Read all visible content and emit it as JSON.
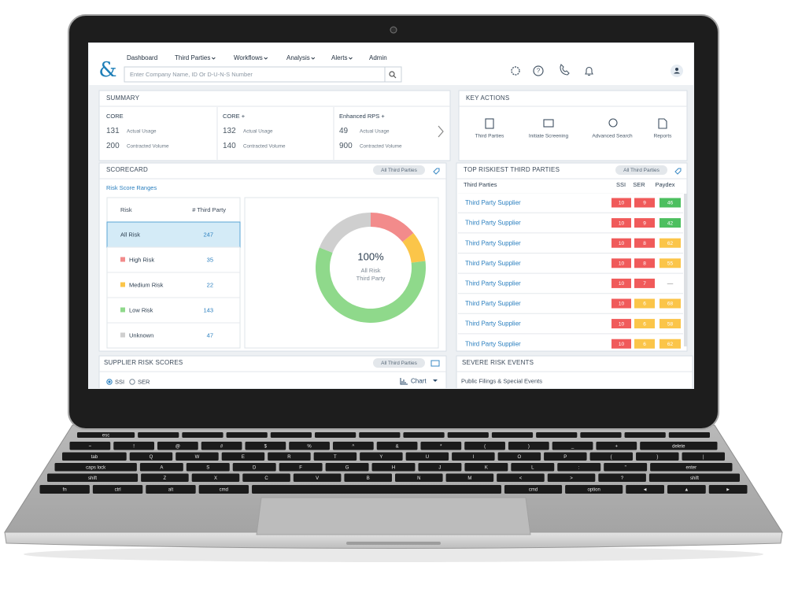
{
  "header": {
    "nav": [
      "Dashboard",
      "Third Parties",
      "Workflows",
      "Analysis",
      "Alerts",
      "Admin"
    ],
    "search_placeholder": "Enter Company Name, ID Or D-U-N-S Number"
  },
  "summary": {
    "title": "SUMMARY",
    "actual_label": "Actual Usage",
    "contracted_label": "Contracted Volume",
    "plans": [
      {
        "name": "CORE",
        "actual": 131,
        "contracted": 200
      },
      {
        "name": "CORE +",
        "actual": 132,
        "contracted": 140
      },
      {
        "name": "Enhanced RPS +",
        "actual": 49,
        "contracted": 900
      }
    ]
  },
  "key_actions": {
    "title": "KEY ACTIONS",
    "items": [
      "Third Parties",
      "Initiate Screening",
      "Advanced Search",
      "Reports"
    ]
  },
  "scorecard": {
    "title": "SCORECARD",
    "filter": "All Third Parties",
    "subtitle": "Risk Score Ranges",
    "columns": [
      "Risk",
      "# Third Party"
    ],
    "selected": "All Risk",
    "rows": [
      {
        "label": "All Risk",
        "count": 247
      },
      {
        "label": "High Risk",
        "count": 35,
        "color": "#f28b8b"
      },
      {
        "label": "Medium Risk",
        "count": 22,
        "color": "#fbc549"
      },
      {
        "label": "Low Risk",
        "count": 143,
        "color": "#8fd98b"
      },
      {
        "label": "Unknown",
        "count": 47,
        "color": "#cfcfcf"
      }
    ],
    "donut_center": "100%",
    "donut_caption": [
      "All Risk",
      "Third Party"
    ]
  },
  "top_riskiest": {
    "title": "TOP RISKIEST THIRD PARTIES",
    "filter": "All Third Parties",
    "columns": [
      "Third Parties",
      "SSI",
      "SER",
      "Paydex"
    ],
    "rows": [
      {
        "name": "Third Party Supplier",
        "ssi": 10,
        "ser": 9,
        "paydex": 46,
        "colors": [
          "#f05a5a",
          "#f05a5a",
          "#4cbf5f"
        ]
      },
      {
        "name": "Third Party Supplier",
        "ssi": 10,
        "ser": 9,
        "paydex": 42,
        "colors": [
          "#f05a5a",
          "#f05a5a",
          "#4cbf5f"
        ]
      },
      {
        "name": "Third Party Supplier",
        "ssi": 10,
        "ser": 8,
        "paydex": 62,
        "colors": [
          "#f05a5a",
          "#f05a5a",
          "#fbc549"
        ]
      },
      {
        "name": "Third Party Supplier",
        "ssi": 10,
        "ser": 8,
        "paydex": 55,
        "colors": [
          "#f05a5a",
          "#f05a5a",
          "#fbc549"
        ]
      },
      {
        "name": "Third Party Supplier",
        "ssi": 10,
        "ser": 7,
        "paydex": "—",
        "colors": [
          "#f05a5a",
          "#f05a5a",
          null
        ]
      },
      {
        "name": "Third Party Supplier",
        "ssi": 10,
        "ser": 6,
        "paydex": 68,
        "colors": [
          "#f05a5a",
          "#fbc549",
          "#fbc549"
        ]
      },
      {
        "name": "Third Party Supplier",
        "ssi": 10,
        "ser": 6,
        "paydex": 58,
        "colors": [
          "#f05a5a",
          "#fbc549",
          "#fbc549"
        ]
      },
      {
        "name": "Third Party Supplier",
        "ssi": 10,
        "ser": 6,
        "paydex": 62,
        "colors": [
          "#f05a5a",
          "#fbc549",
          "#fbc549"
        ]
      }
    ]
  },
  "supplier_risk_scores": {
    "title": "SUPPLIER RISK SCORES",
    "filter": "All Third Parties",
    "options": [
      "SSI",
      "SER"
    ],
    "view": "Chart"
  },
  "severe_risk_events": {
    "title": "SEVERE RISK EVENTS",
    "subtitle": "Public Filings & Special Events"
  },
  "keyboard": {
    "esc": "esc",
    "rows": [
      [
        "~",
        "!",
        "@",
        "#",
        "$",
        "%",
        "^",
        "&",
        "*",
        "(",
        ")",
        "_",
        "+",
        "delete"
      ],
      [
        "tab",
        "Q",
        "W",
        "E",
        "R",
        "T",
        "Y",
        "U",
        "I",
        "O",
        "P",
        "{",
        "}",
        "|"
      ],
      [
        "caps lock",
        "A",
        "S",
        "D",
        "F",
        "G",
        "H",
        "J",
        "K",
        "L",
        ":",
        "\"",
        "enter"
      ],
      [
        "shift",
        "Z",
        "X",
        "C",
        "V",
        "B",
        "N",
        "M",
        "<",
        ">",
        "?",
        "shift"
      ]
    ],
    "bottom_left": [
      "fn",
      "ctrl",
      "alt",
      "cmd"
    ],
    "bottom_right": [
      "cmd",
      "option",
      "◄",
      "▲",
      "►"
    ]
  }
}
